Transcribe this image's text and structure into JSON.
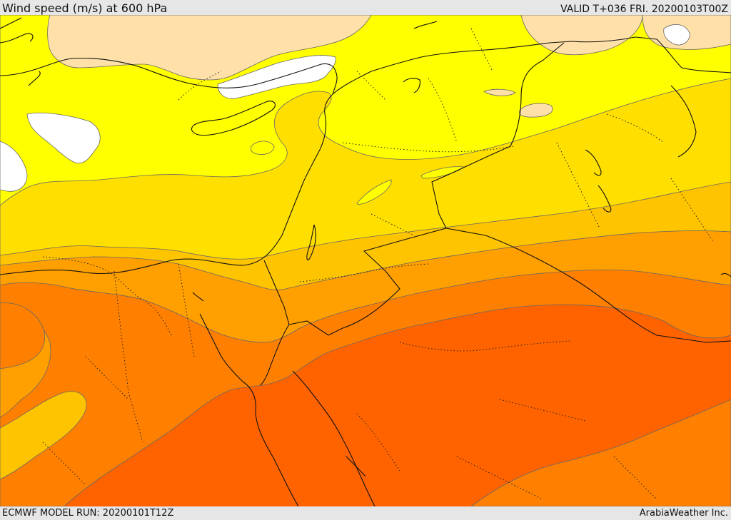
{
  "header": {
    "title": "Wind speed (m/s) at 600 hPa",
    "valid": "VALID T+036 FRI. 20200103T00Z"
  },
  "footer": {
    "model_run": "ECMWF MODEL RUN: 20200101T12Z",
    "credit": "ArabiaWeather Inc."
  },
  "map": {
    "variable": "wind speed",
    "units": "m/s",
    "pressure_level_hpa": 600,
    "region": "Eastern Mediterranean and Middle East",
    "colors": {
      "calm": "#ffffff",
      "very_light": "#ffe0a8",
      "light": "#ffff00",
      "moderate": "#ffdf00",
      "fresh": "#ffc400",
      "strong": "#ff9f00",
      "very_strong": "#ff8000",
      "strongest": "#ff6300",
      "coastline": "#000000",
      "contour": "#555555"
    }
  }
}
